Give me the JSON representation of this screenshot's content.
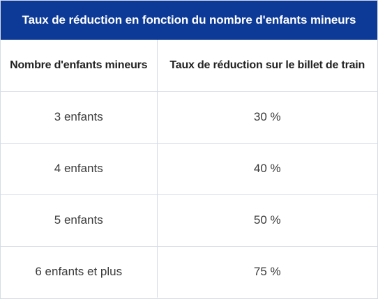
{
  "table": {
    "title": "Taux de réduction en fonction du nombre d'enfants mineurs",
    "headers": [
      "Nombre d'enfants mineurs",
      "Taux de réduction sur le billet de train"
    ],
    "rows": [
      [
        "3 enfants",
        "30 %"
      ],
      [
        "4 enfants",
        "40 %"
      ],
      [
        "5 enfants",
        "50 %"
      ],
      [
        "6 enfants et plus",
        "75 %"
      ]
    ],
    "colors": {
      "title_background": "#0d3a96",
      "title_text": "#ffffff",
      "border": "#d6dbe6"
    }
  }
}
